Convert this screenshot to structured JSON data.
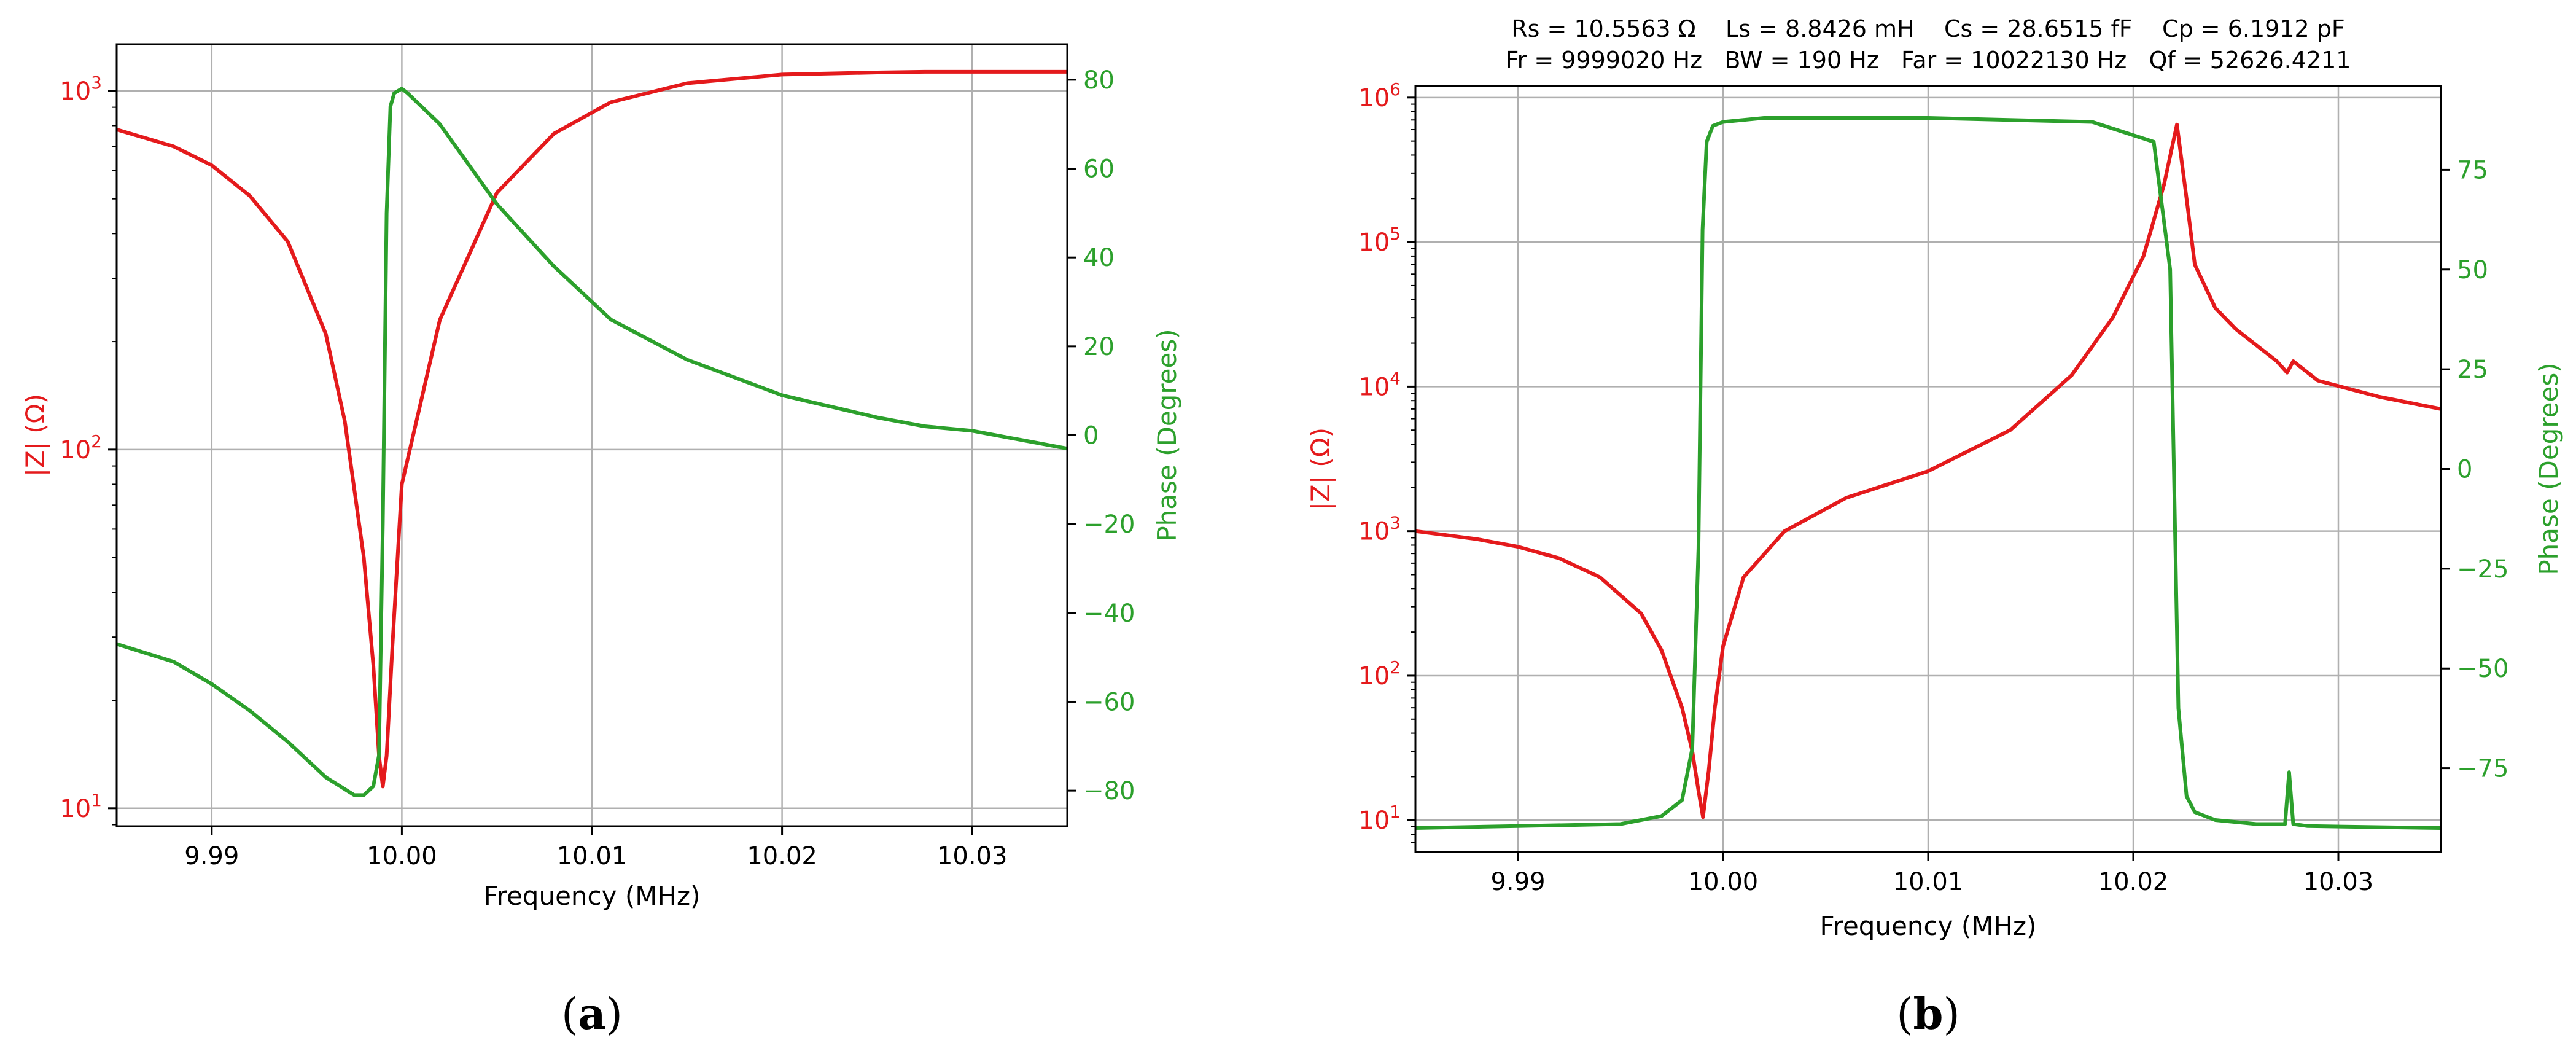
{
  "colors": {
    "magnitude": "#e41a1c",
    "phase": "#2ca02c",
    "grid": "#b0b0b0",
    "axis": "#000000"
  },
  "charts": [
    {
      "id": "a",
      "type": "line",
      "panel_label": "a",
      "xlabel": "Frequency (MHz)",
      "ylabel_left": "|Z| (Ω)",
      "ylabel_right": "Phase (Degrees)",
      "xlim": [
        9.985,
        10.035
      ],
      "ylim_left_log10": [
        0.95,
        3.13
      ],
      "ylim_right": [
        -88,
        88
      ],
      "x_ticks": [
        "9.99",
        "10.00",
        "10.01",
        "10.02",
        "10.03"
      ],
      "x_tick_values": [
        9.99,
        10.0,
        10.01,
        10.02,
        10.03
      ],
      "y_left_ticks": [
        {
          "base": "10",
          "exp": "1",
          "value": 1
        },
        {
          "base": "10",
          "exp": "2",
          "value": 2
        },
        {
          "base": "10",
          "exp": "3",
          "value": 3
        }
      ],
      "y_right_ticks": [
        "−80",
        "−60",
        "−40",
        "−20",
        "0",
        "20",
        "40",
        "60",
        "80"
      ],
      "y_right_tick_values": [
        -80,
        -60,
        -40,
        -20,
        0,
        20,
        40,
        60,
        80
      ],
      "series": [
        {
          "name": "|Z|",
          "axis": "left-log",
          "x": [
            9.985,
            9.988,
            9.99,
            9.992,
            9.994,
            9.996,
            9.997,
            9.998,
            9.9985,
            9.9988,
            9.999,
            9.9992,
            9.9995,
            10.0,
            10.002,
            10.005,
            10.008,
            10.011,
            10.015,
            10.02,
            10.025,
            10.0275,
            10.03,
            10.035
          ],
          "y": [
            780,
            700,
            620,
            510,
            380,
            210,
            120,
            50,
            25,
            14,
            11.5,
            14,
            28,
            80,
            230,
            520,
            760,
            930,
            1050,
            1110,
            1125,
            1130,
            1130,
            1130
          ]
        },
        {
          "name": "Phase",
          "axis": "right",
          "x": [
            9.985,
            9.988,
            9.99,
            9.992,
            9.994,
            9.996,
            9.9975,
            9.998,
            9.9985,
            9.9988,
            9.999,
            9.9992,
            9.9994,
            9.9996,
            10.0,
            10.0003,
            10.002,
            10.005,
            10.008,
            10.011,
            10.015,
            10.02,
            10.025,
            10.0275,
            10.03,
            10.035
          ],
          "y": [
            -47,
            -51,
            -56,
            -62,
            -69,
            -77,
            -81,
            -81,
            -79,
            -72,
            -20,
            50,
            74,
            77,
            78,
            77,
            70,
            52,
            38,
            26,
            17,
            9,
            4,
            2,
            1,
            -3
          ]
        }
      ]
    },
    {
      "id": "b",
      "type": "line",
      "panel_label": "b",
      "info_lines": [
        "Rs = 10.5563 Ω    Ls = 8.8426 mH    Cs = 28.6515 fF    Cp = 6.1912 pF",
        "Fr = 9999020 Hz   BW = 190 Hz   Far = 10022130 Hz   Qf = 52626.4211"
      ],
      "xlabel": "Frequency (MHz)",
      "ylabel_left": "|Z| (Ω)",
      "ylabel_right": "Phase (Degrees)",
      "xlim": [
        9.985,
        10.035
      ],
      "ylim_left_log10": [
        0.78,
        6.08
      ],
      "ylim_right": [
        -96,
        96
      ],
      "x_ticks": [
        "9.99",
        "10.00",
        "10.01",
        "10.02",
        "10.03"
      ],
      "x_tick_values": [
        9.99,
        10.0,
        10.01,
        10.02,
        10.03
      ],
      "y_left_ticks": [
        {
          "base": "10",
          "exp": "1",
          "value": 1
        },
        {
          "base": "10",
          "exp": "2",
          "value": 2
        },
        {
          "base": "10",
          "exp": "3",
          "value": 3
        },
        {
          "base": "10",
          "exp": "4",
          "value": 4
        },
        {
          "base": "10",
          "exp": "5",
          "value": 5
        },
        {
          "base": "10",
          "exp": "6",
          "value": 6
        }
      ],
      "y_right_ticks": [
        "−75",
        "−50",
        "−25",
        "0",
        "25",
        "50",
        "75"
      ],
      "y_right_tick_values": [
        -75,
        -50,
        -25,
        0,
        25,
        50,
        75
      ],
      "series": [
        {
          "name": "|Z|",
          "axis": "left-log",
          "x": [
            9.985,
            9.988,
            9.99,
            9.992,
            9.994,
            9.996,
            9.997,
            9.998,
            9.9985,
            9.9988,
            9.99902,
            9.9993,
            9.9996,
            10.0,
            10.001,
            10.003,
            10.006,
            10.01,
            10.014,
            10.017,
            10.019,
            10.0205,
            10.0215,
            10.02213,
            10.0226,
            10.023,
            10.024,
            10.025,
            10.027,
            10.0275,
            10.0278,
            10.029,
            10.032,
            10.035
          ],
          "y": [
            1000,
            880,
            780,
            650,
            480,
            270,
            150,
            60,
            30,
            16,
            10.5,
            22,
            60,
            160,
            480,
            1000,
            1700,
            2600,
            5000,
            12000,
            30000,
            80000,
            250000,
            650000,
            200000,
            70000,
            35000,
            25000,
            15000,
            12500,
            15000,
            11000,
            8500,
            7000
          ]
        },
        {
          "name": "Phase",
          "axis": "right",
          "x": [
            9.985,
            9.99,
            9.995,
            9.997,
            9.998,
            9.9985,
            9.9988,
            9.999,
            9.9992,
            9.9995,
            10.0,
            10.002,
            10.01,
            10.018,
            10.021,
            10.0218,
            10.0222,
            10.0226,
            10.023,
            10.024,
            10.026,
            10.0274,
            10.0276,
            10.0278,
            10.0285,
            10.035
          ],
          "y": [
            -90,
            -89.5,
            -89,
            -87,
            -83,
            -70,
            -20,
            60,
            82,
            86,
            87,
            88,
            88,
            87,
            82,
            50,
            -60,
            -82,
            -86,
            -88,
            -89,
            -89,
            -76,
            -89,
            -89.5,
            -90
          ]
        }
      ]
    }
  ]
}
